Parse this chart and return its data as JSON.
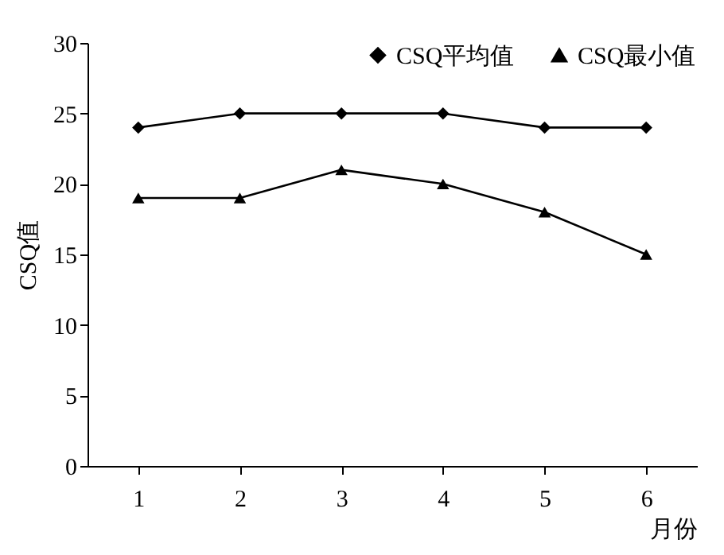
{
  "chart_data": {
    "type": "line",
    "ylabel": "CSQ值",
    "xlabel": "月份",
    "categories": [
      "1",
      "2",
      "3",
      "4",
      "5",
      "6"
    ],
    "series": [
      {
        "name": "CSQ平均值",
        "color": "#000000",
        "marker": "diamond",
        "values": [
          24,
          25,
          25,
          25,
          24,
          24
        ]
      },
      {
        "name": "CSQ最小值",
        "color": "#000000",
        "marker": "triangle",
        "values": [
          19,
          19,
          21,
          20,
          18,
          15
        ]
      }
    ],
    "ylim": [
      0,
      30
    ],
    "yticks": [
      0,
      5,
      10,
      15,
      20,
      25,
      30
    ],
    "grid": false,
    "legend": "top right",
    "line_style": "solid"
  }
}
